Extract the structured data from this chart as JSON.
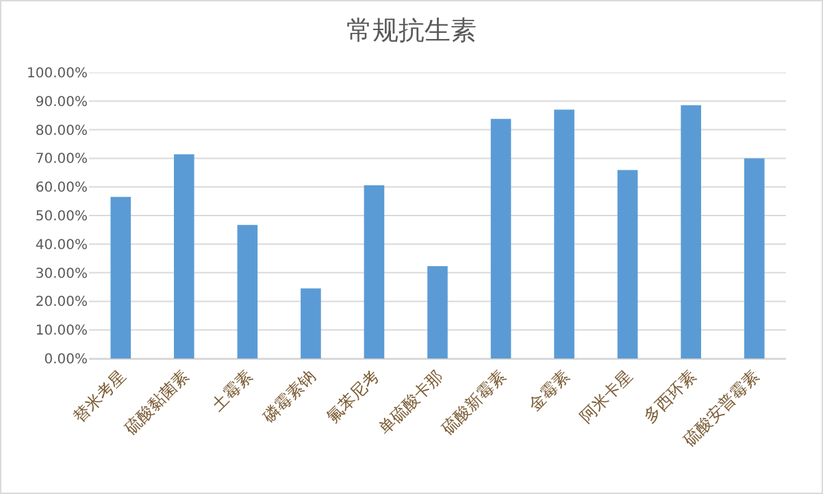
{
  "chart_data": {
    "type": "bar",
    "title": "常规抗生素",
    "categories": [
      "替米考星",
      "硫酸黏菌素",
      "土霉素",
      "磷霉素钠",
      "氟苯尼考",
      "单硫酸卡那",
      "硫酸新霉素",
      "金霉素",
      "阿米卡星",
      "多西环素",
      "硫酸安普霉素"
    ],
    "values": [
      56.5,
      71.4,
      46.7,
      24.5,
      60.6,
      32.3,
      83.8,
      87.0,
      65.9,
      88.6,
      70.0
    ],
    "color": "#5b9bd5",
    "ylim": [
      0,
      100
    ],
    "yticks": [
      {
        "value": 0,
        "label": "0.00%"
      },
      {
        "value": 10,
        "label": "10.00%"
      },
      {
        "value": 20,
        "label": "20.00%"
      },
      {
        "value": 30,
        "label": "30.00%"
      },
      {
        "value": 40,
        "label": "40.00%"
      },
      {
        "value": 50,
        "label": "50.00%"
      },
      {
        "value": 60,
        "label": "60.00%"
      },
      {
        "value": 70,
        "label": "70.00%"
      },
      {
        "value": 80,
        "label": "80.00%"
      },
      {
        "value": 90,
        "label": "90.00%"
      },
      {
        "value": 100,
        "label": "100.00%"
      }
    ],
    "grid": "y"
  }
}
